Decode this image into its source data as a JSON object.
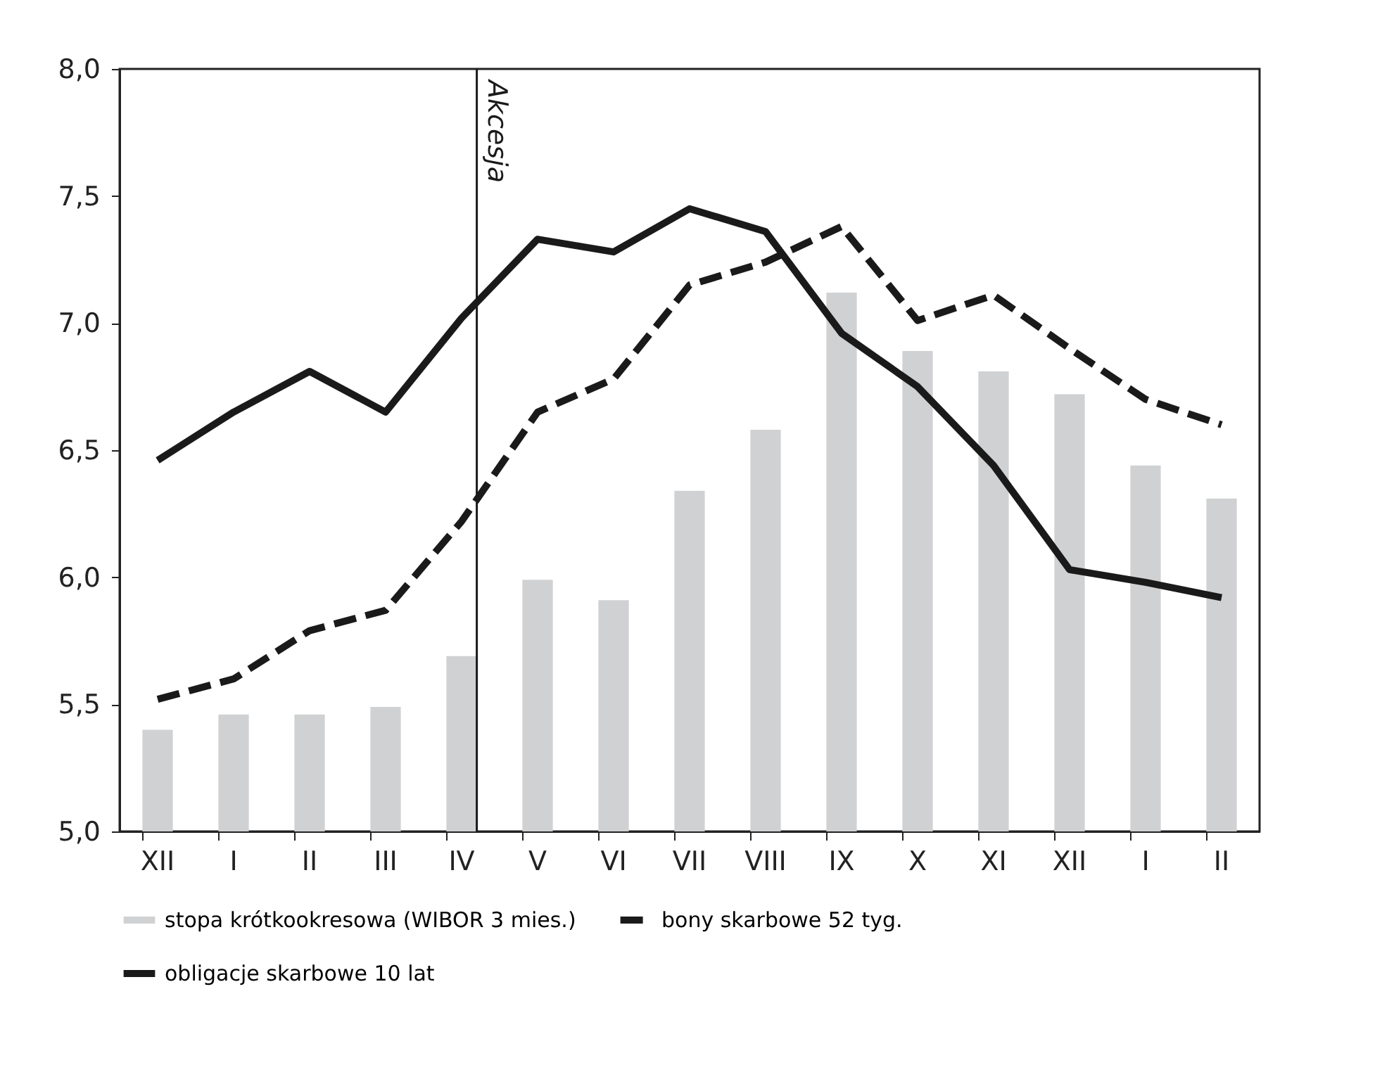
{
  "chart_data": {
    "type": "bar",
    "categories": [
      "XII",
      "I",
      "II",
      "III",
      "IV",
      "V",
      "VI",
      "VII",
      "VIII",
      "IX",
      "X",
      "XI",
      "XII",
      "I",
      "II"
    ],
    "series": [
      {
        "name": "stopa krótkookresowa (WIBOR 3 mies.)",
        "color": "#d0d1d3",
        "values": [
          5.4,
          5.46,
          5.46,
          5.49,
          5.69,
          5.99,
          5.91,
          6.34,
          6.58,
          7.12,
          6.89,
          6.81,
          6.72,
          6.44,
          6.31
        ]
      },
      {
        "name": "bony skarbowe 52 tyg.",
        "type": "line",
        "line_style": "dashed",
        "color": "#1a1a1a",
        "values": [
          5.52,
          5.6,
          5.79,
          5.87,
          6.22,
          6.65,
          6.78,
          7.15,
          7.24,
          7.38,
          7.01,
          7.11,
          6.9,
          6.7,
          6.6
        ]
      },
      {
        "name": "obligacje skarbowe 10 lat",
        "type": "line",
        "line_style": "solid",
        "color": "#1a1a1a",
        "values": [
          6.46,
          6.65,
          6.81,
          6.65,
          7.02,
          7.33,
          7.28,
          7.45,
          7.36,
          6.96,
          6.75,
          6.44,
          6.03,
          5.98,
          5.92
        ]
      }
    ],
    "ylim": [
      5.0,
      8.0
    ],
    "yticks": [
      {
        "value": 5.0,
        "label": "5,0"
      },
      {
        "value": 5.5,
        "label": "5,5"
      },
      {
        "value": 6.0,
        "label": "6,0"
      },
      {
        "value": 6.5,
        "label": "6,5"
      },
      {
        "value": 7.0,
        "label": "7,0"
      },
      {
        "value": 7.5,
        "label": "7,5"
      },
      {
        "value": 8.0,
        "label": "8,0"
      }
    ],
    "ref_lines": [
      {
        "axis": "x",
        "value": "IV",
        "label": "Akcesja",
        "color": "#1a1a1a"
      }
    ],
    "grid": false,
    "legend": "bottom"
  }
}
